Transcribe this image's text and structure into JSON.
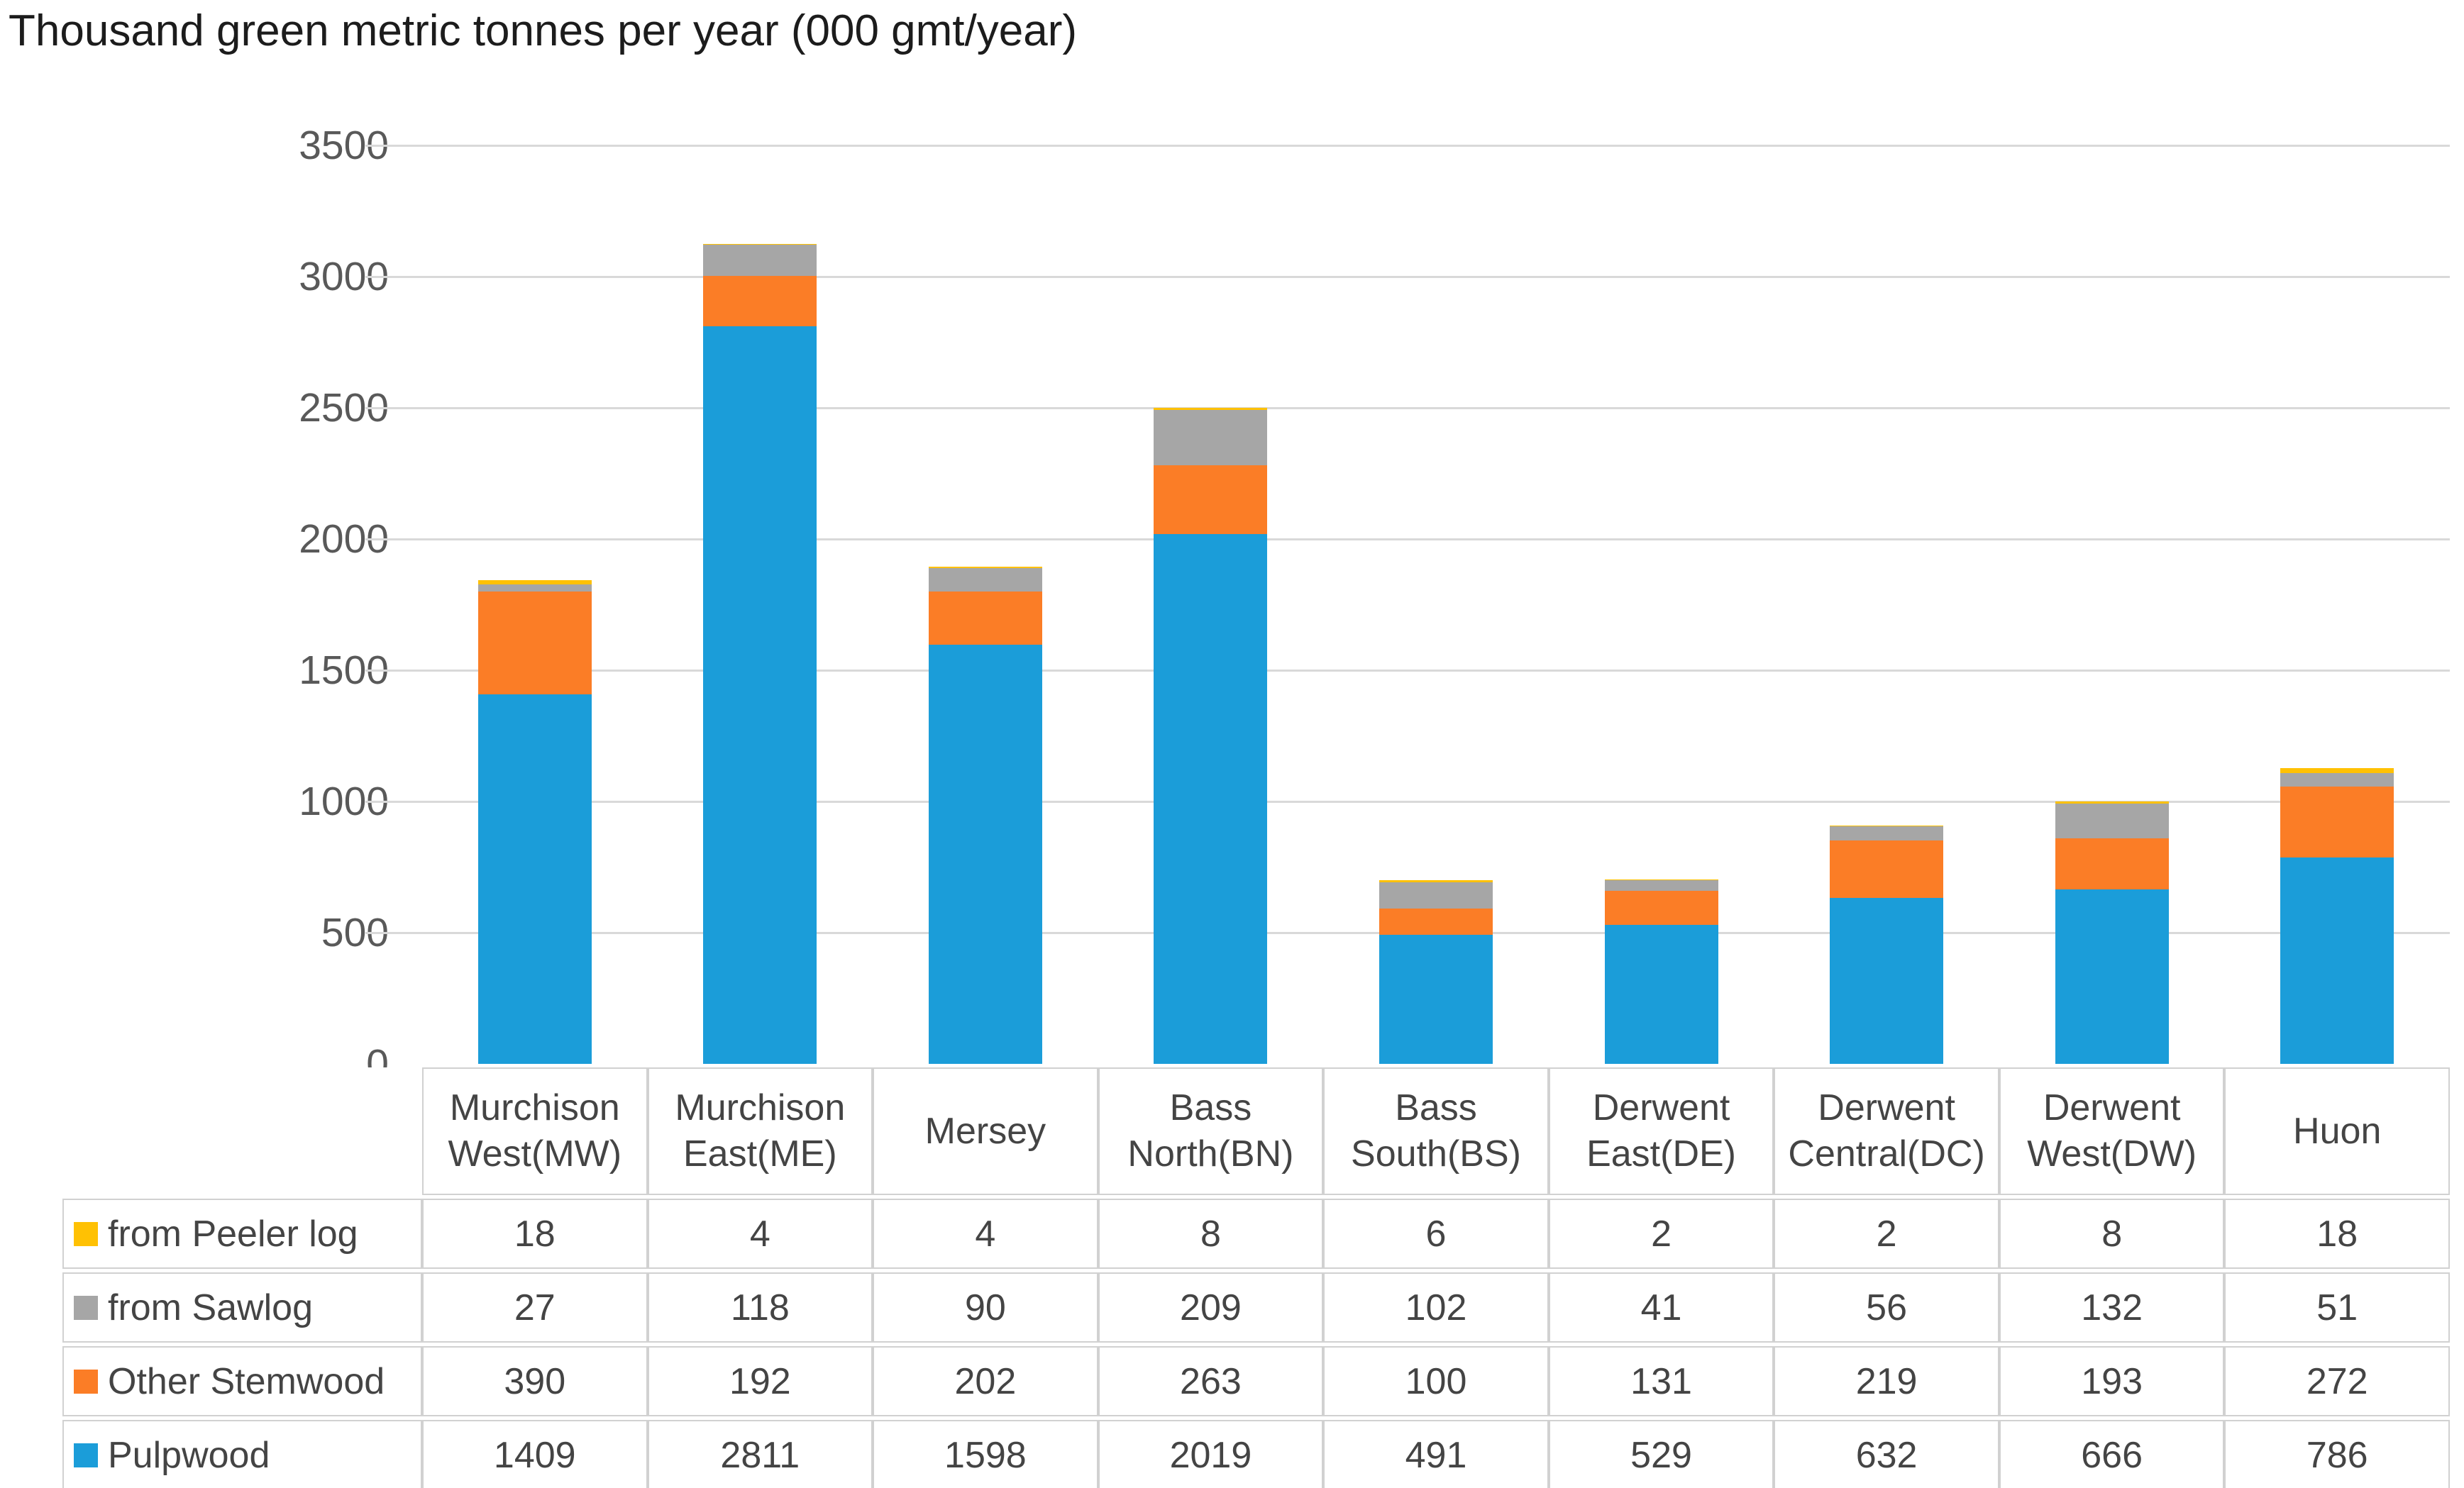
{
  "title": "Thousand green metric tonnes per year (000 gmt/year)",
  "colors": {
    "pulpwood": "#1b9dd9",
    "other_stemwood": "#fb7d26",
    "from_sawlog": "#a6a6a6",
    "from_peeler_log": "#ffc103",
    "gridline": "#d9d9d9",
    "axis_text": "#595959",
    "table_text": "#444444"
  },
  "chart_data": {
    "type": "bar",
    "stacked": true,
    "title": "Thousand green metric tonnes per year (000 gmt/year)",
    "xlabel": "",
    "ylabel": "",
    "ylim": [
      0,
      3500
    ],
    "ytick_interval": 500,
    "yticks": [
      3500,
      3000,
      2500,
      2000,
      1500,
      1000,
      500,
      0
    ],
    "grid": true,
    "legend_position": "data-table-left",
    "categories": [
      "Murchison West(MW)",
      "Murchison East(ME)",
      "Mersey",
      "Bass North(BN)",
      "Bass South(BS)",
      "Derwent East(DE)",
      "Derwent Central(DC)",
      "Derwent West(DW)",
      "Huon"
    ],
    "series": [
      {
        "name": "from Peeler log",
        "color_key": "from_peeler_log",
        "values": [
          18,
          4,
          4,
          8,
          6,
          2,
          2,
          8,
          18
        ]
      },
      {
        "name": "from Sawlog",
        "color_key": "from_sawlog",
        "values": [
          27,
          118,
          90,
          209,
          102,
          41,
          56,
          132,
          51
        ]
      },
      {
        "name": "Other Stemwood",
        "color_key": "other_stemwood",
        "values": [
          390,
          192,
          202,
          263,
          100,
          131,
          219,
          193,
          272
        ]
      },
      {
        "name": "Pulpwood",
        "color_key": "pulpwood",
        "values": [
          1409,
          2811,
          1598,
          2019,
          491,
          529,
          632,
          666,
          786
        ]
      }
    ],
    "stack_order_bottom_to_top": [
      "Pulpwood",
      "Other Stemwood",
      "from Sawlog",
      "from Peeler log"
    ]
  }
}
